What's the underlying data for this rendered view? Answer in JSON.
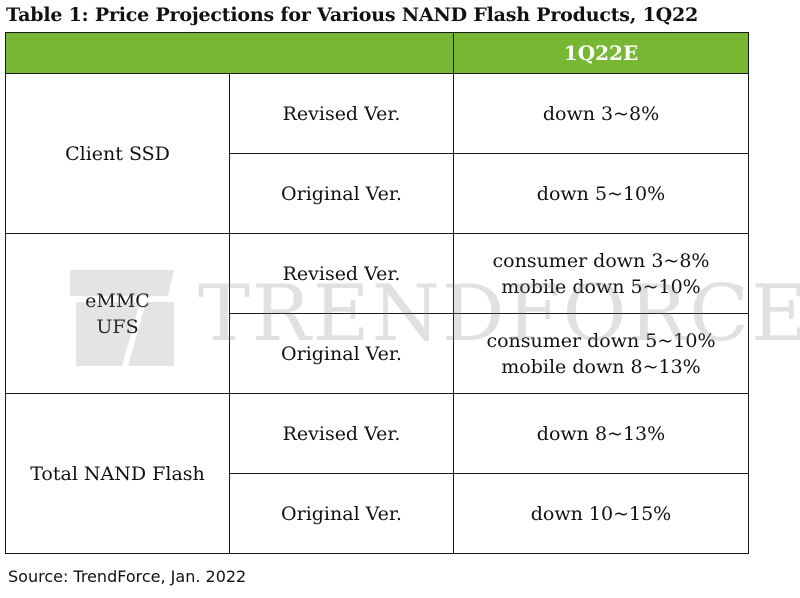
{
  "title": "Table 1: Price Projections for Various NAND Flash Products, 1Q22",
  "header": {
    "column_label": "1Q22E",
    "accent_color": "#77b733"
  },
  "rows": [
    {
      "category": "Client SSD",
      "versions": [
        {
          "label": "Revised Ver.",
          "lines": [
            "down 3~8%"
          ]
        },
        {
          "label": "Original Ver.",
          "lines": [
            "down 5~10%"
          ]
        }
      ]
    },
    {
      "category_lines": [
        "eMMC",
        "UFS"
      ],
      "versions": [
        {
          "label": "Revised Ver.",
          "lines": [
            "consumer down 3~8%",
            "mobile down 5~10%"
          ]
        },
        {
          "label": "Original Ver.",
          "lines": [
            "consumer down 5~10%",
            "mobile down 8~13%"
          ]
        }
      ]
    },
    {
      "category": "Total NAND Flash",
      "versions": [
        {
          "label": "Revised Ver.",
          "lines": [
            "down 8~13%"
          ]
        },
        {
          "label": "Original Ver.",
          "lines": [
            "down 10~15%"
          ]
        }
      ]
    }
  ],
  "watermark": {
    "text": "TRENDFORCE",
    "icon": "trendforce-logo-icon"
  },
  "source": "Source: TrendForce, Jan. 2022"
}
